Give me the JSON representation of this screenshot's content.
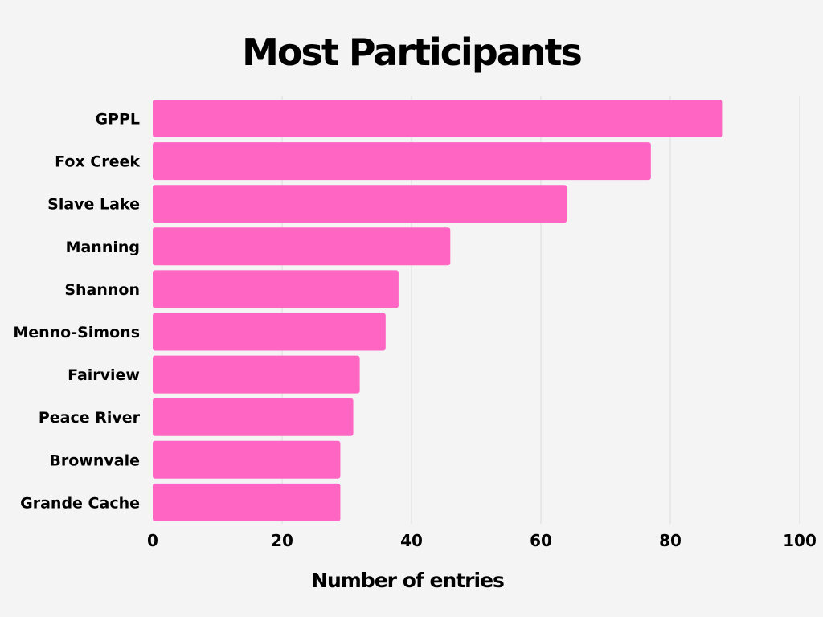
{
  "chart_data": {
    "type": "bar",
    "orientation": "horizontal",
    "title": "Most Participants",
    "xlabel": "Number of entries",
    "ylabel": "",
    "categories": [
      "GPPL",
      "Fox Creek",
      "Slave Lake",
      "Manning",
      "Shannon",
      "Menno-Simons",
      "Fairview",
      "Peace River",
      "Brownvale",
      "Grande Cache"
    ],
    "values": [
      88,
      77,
      64,
      46,
      38,
      36,
      32,
      31,
      29,
      29
    ],
    "xlim": [
      0,
      100
    ],
    "xticks": [
      0,
      20,
      40,
      60,
      80,
      100
    ],
    "tick_labels": [
      "0",
      "20",
      "40",
      "60",
      "80",
      "100"
    ],
    "grid": true,
    "bar_color": "#ff66c4",
    "grid_color": "#dcdcdc",
    "background_color": "#f4f4f4"
  }
}
